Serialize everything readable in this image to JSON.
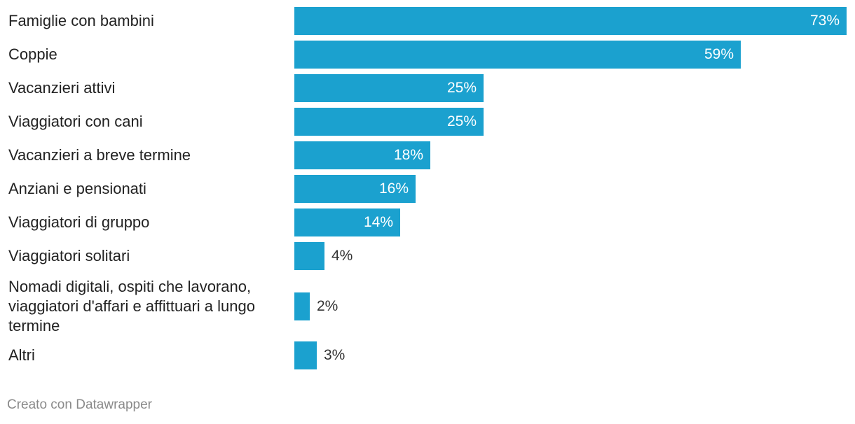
{
  "chart_data": {
    "type": "bar",
    "orientation": "horizontal",
    "categories": [
      "Famiglie con bambini",
      "Coppie",
      "Vacanzieri attivi",
      "Viaggiatori con cani",
      "Vacanzieri a breve termine",
      "Anziani e pensionati",
      "Viaggiatori di gruppo",
      "Viaggiatori solitari",
      "Nomadi digitali, ospiti che lavorano, viaggiatori d'affari e affittuari a lungo termine",
      "Altri"
    ],
    "values": [
      73,
      59,
      25,
      25,
      18,
      16,
      14,
      4,
      2,
      3
    ],
    "value_labels": [
      "73%",
      "59%",
      "25%",
      "25%",
      "18%",
      "16%",
      "14%",
      "4%",
      "2%",
      "3%"
    ],
    "unit": "%",
    "xlim": [
      0,
      73
    ],
    "bar_color": "#1ba1cf",
    "grid": false,
    "legend": "none"
  },
  "footer": {
    "credit": "Creato con Datawrapper"
  }
}
